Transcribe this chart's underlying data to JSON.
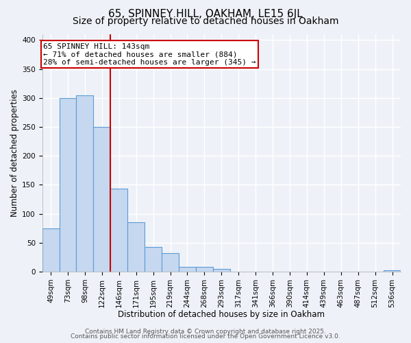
{
  "title1": "65, SPINNEY HILL, OAKHAM, LE15 6JL",
  "title2": "Size of property relative to detached houses in Oakham",
  "xlabel": "Distribution of detached houses by size in Oakham",
  "ylabel": "Number of detached properties",
  "categories": [
    "49sqm",
    "73sqm",
    "98sqm",
    "122sqm",
    "146sqm",
    "171sqm",
    "195sqm",
    "219sqm",
    "244sqm",
    "268sqm",
    "293sqm",
    "317sqm",
    "341sqm",
    "366sqm",
    "390sqm",
    "414sqm",
    "439sqm",
    "463sqm",
    "487sqm",
    "512sqm",
    "536sqm"
  ],
  "values": [
    75,
    300,
    305,
    250,
    143,
    85,
    43,
    32,
    8,
    8,
    5,
    0,
    0,
    0,
    0,
    0,
    0,
    0,
    0,
    0,
    2
  ],
  "bar_color": "#c5d8f0",
  "bar_edge_color": "#5b9bd5",
  "vline_color": "#cc0000",
  "annotation_line1": "65 SPINNEY HILL: 143sqm",
  "annotation_line2": "← 71% of detached houses are smaller (884)",
  "annotation_line3": "28% of semi-detached houses are larger (345) →",
  "annotation_box_color": "#ffffff",
  "annotation_box_edge_color": "#cc0000",
  "ylim": [
    0,
    410
  ],
  "yticks": [
    0,
    50,
    100,
    150,
    200,
    250,
    300,
    350,
    400
  ],
  "footer1": "Contains HM Land Registry data © Crown copyright and database right 2025.",
  "footer2": "Contains public sector information licensed under the Open Government Licence v3.0.",
  "background_color": "#eef2f8",
  "grid_color": "#ffffff",
  "title_fontsize": 11,
  "subtitle_fontsize": 10,
  "axis_label_fontsize": 8.5,
  "tick_fontsize": 7.5,
  "annotation_fontsize": 8,
  "footer_fontsize": 6.5
}
